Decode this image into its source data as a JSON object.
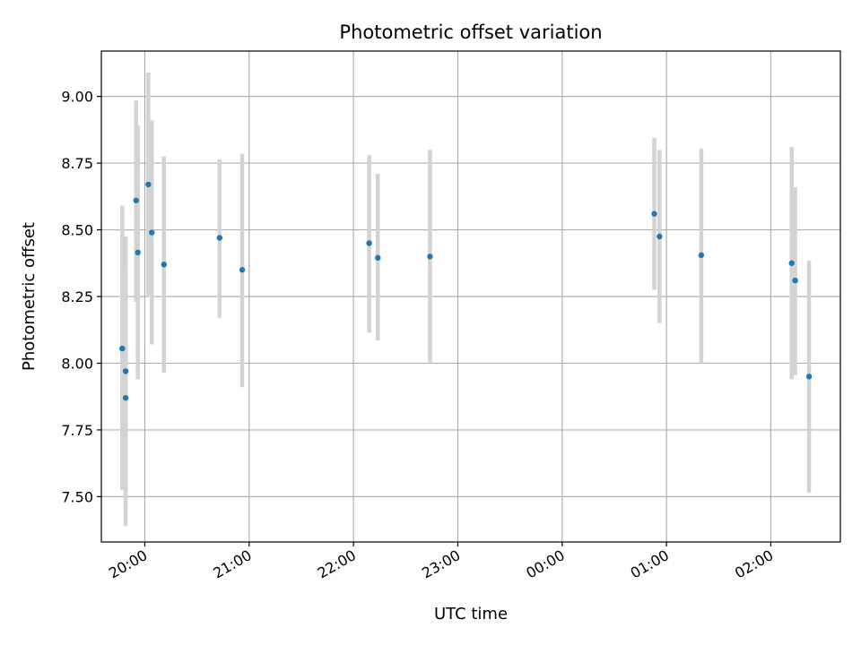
{
  "chart_data": {
    "type": "scatter",
    "title": "Photometric offset variation",
    "xlabel": "UTC time",
    "ylabel": "Photometric offset",
    "x_axis": {
      "type": "time",
      "range": [
        "19:35",
        "02:40"
      ],
      "ticks": [
        "20:00",
        "21:00",
        "22:00",
        "23:00",
        "00:00",
        "01:00",
        "02:00"
      ]
    },
    "y_axis": {
      "range": [
        7.33,
        9.17
      ],
      "ticks": [
        7.5,
        7.75,
        8.0,
        8.25,
        8.5,
        8.75,
        9.0
      ],
      "tick_labels": [
        "7.50",
        "7.75",
        "8.00",
        "8.25",
        "8.50",
        "8.75",
        "9.00"
      ]
    },
    "grid": true,
    "colors": {
      "points": "#1f77b4",
      "error_bars": "#d3d3d3",
      "grid": "#b0b0b0"
    },
    "series": [
      {
        "points": [
          {
            "x": "19:47",
            "y": 8.055,
            "ylow": 7.525,
            "yhigh": 8.59
          },
          {
            "x": "19:49",
            "y": 7.97,
            "ylow": 7.455,
            "yhigh": 8.475
          },
          {
            "x": "19:49",
            "y": 7.87,
            "ylow": 7.39,
            "yhigh": 8.35
          },
          {
            "x": "19:55",
            "y": 8.61,
            "ylow": 8.23,
            "yhigh": 8.985
          },
          {
            "x": "19:56",
            "y": 8.415,
            "ylow": 7.94,
            "yhigh": 8.89
          },
          {
            "x": "20:02",
            "y": 8.67,
            "ylow": 8.25,
            "yhigh": 9.09
          },
          {
            "x": "20:04",
            "y": 8.49,
            "ylow": 8.07,
            "yhigh": 8.91
          },
          {
            "x": "20:11",
            "y": 8.37,
            "ylow": 7.965,
            "yhigh": 8.775
          },
          {
            "x": "20:43",
            "y": 8.47,
            "ylow": 8.17,
            "yhigh": 8.765
          },
          {
            "x": "20:56",
            "y": 8.35,
            "ylow": 7.91,
            "yhigh": 8.785
          },
          {
            "x": "22:09",
            "y": 8.45,
            "ylow": 8.115,
            "yhigh": 8.78
          },
          {
            "x": "22:14",
            "y": 8.395,
            "ylow": 8.085,
            "yhigh": 8.71
          },
          {
            "x": "22:44",
            "y": 8.4,
            "ylow": 8.0,
            "yhigh": 8.8
          },
          {
            "x": "00:53",
            "y": 8.56,
            "ylow": 8.275,
            "yhigh": 8.845
          },
          {
            "x": "00:56",
            "y": 8.475,
            "ylow": 8.15,
            "yhigh": 8.8
          },
          {
            "x": "01:20",
            "y": 8.405,
            "ylow": 8.0,
            "yhigh": 8.805
          },
          {
            "x": "02:12",
            "y": 8.375,
            "ylow": 7.94,
            "yhigh": 8.81
          },
          {
            "x": "02:14",
            "y": 8.31,
            "ylow": 7.955,
            "yhigh": 8.66
          },
          {
            "x": "02:22",
            "y": 7.95,
            "ylow": 7.515,
            "yhigh": 8.385
          }
        ]
      }
    ]
  }
}
